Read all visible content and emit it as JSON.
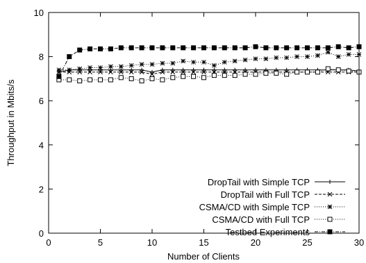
{
  "chart_data": {
    "type": "line",
    "title": "",
    "xlabel": "Number of Clients",
    "ylabel": "Throughput in Mbits/s",
    "xlim": [
      0,
      30
    ],
    "ylim": [
      0,
      10
    ],
    "xticks": [
      0,
      5,
      10,
      15,
      20,
      25,
      30
    ],
    "yticks": [
      0,
      2,
      4,
      6,
      8,
      10
    ],
    "grid": false,
    "legend_position": "bottom-right",
    "x": [
      1,
      2,
      3,
      4,
      5,
      6,
      7,
      8,
      9,
      10,
      11,
      12,
      13,
      14,
      15,
      16,
      17,
      18,
      19,
      20,
      21,
      22,
      23,
      24,
      25,
      26,
      27,
      28,
      29,
      30
    ],
    "series": [
      {
        "name": "DropTail with Simple TCP",
        "marker": "plus",
        "dash": "solid",
        "values": [
          7.3,
          7.4,
          7.4,
          7.4,
          7.4,
          7.4,
          7.4,
          7.4,
          7.4,
          7.3,
          7.4,
          7.4,
          7.4,
          7.4,
          7.4,
          7.4,
          7.4,
          7.4,
          7.4,
          7.4,
          7.4,
          7.4,
          7.4,
          7.4,
          7.4,
          7.4,
          7.4,
          7.4,
          7.4,
          7.35
        ]
      },
      {
        "name": "DropTail with Full TCP",
        "marker": "cross",
        "dash": "dashed",
        "values": [
          7.3,
          7.3,
          7.3,
          7.3,
          7.3,
          7.3,
          7.3,
          7.3,
          7.3,
          7.2,
          7.3,
          7.3,
          7.3,
          7.3,
          7.3,
          7.3,
          7.3,
          7.3,
          7.3,
          7.3,
          7.3,
          7.3,
          7.3,
          7.3,
          7.3,
          7.3,
          7.3,
          7.3,
          7.3,
          7.3
        ]
      },
      {
        "name": "CSMA/CD with Simple TCP",
        "marker": "star",
        "dash": "dotted",
        "values": [
          7.4,
          7.4,
          7.45,
          7.5,
          7.5,
          7.55,
          7.55,
          7.6,
          7.65,
          7.65,
          7.7,
          7.7,
          7.8,
          7.75,
          7.75,
          7.6,
          7.75,
          7.8,
          7.85,
          7.9,
          7.9,
          7.95,
          7.95,
          8.0,
          8.0,
          8.05,
          8.2,
          8.0,
          8.1,
          8.1
        ]
      },
      {
        "name": "CSMA/CD with Full TCP",
        "marker": "square-open",
        "dash": "dotted",
        "values": [
          6.95,
          6.95,
          6.9,
          6.95,
          6.95,
          6.95,
          7.05,
          7.0,
          6.9,
          7.0,
          6.95,
          7.05,
          7.1,
          7.1,
          7.05,
          7.15,
          7.15,
          7.15,
          7.2,
          7.2,
          7.25,
          7.25,
          7.2,
          7.3,
          7.3,
          7.3,
          7.45,
          7.4,
          7.35,
          7.3
        ]
      },
      {
        "name": "Testbed Experiments",
        "marker": "square-filled",
        "dash": "dash-dot",
        "values": [
          7.1,
          8.0,
          8.3,
          8.35,
          8.35,
          8.35,
          8.4,
          8.4,
          8.4,
          8.4,
          8.4,
          8.4,
          8.4,
          8.4,
          8.4,
          8.4,
          8.4,
          8.4,
          8.4,
          8.45,
          8.4,
          8.4,
          8.4,
          8.4,
          8.4,
          8.4,
          8.4,
          8.45,
          8.4,
          8.45
        ]
      }
    ]
  }
}
